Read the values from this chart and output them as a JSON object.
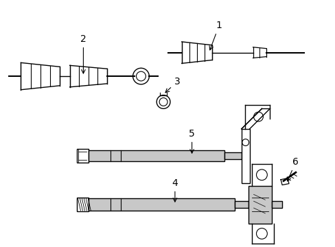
{
  "bg_color": "#ffffff",
  "line_color": "#000000",
  "gray_fill": "#c8c8c8",
  "label_color": "#000000",
  "font_size": 10,
  "figsize": [
    4.89,
    3.6
  ],
  "dpi": 100
}
